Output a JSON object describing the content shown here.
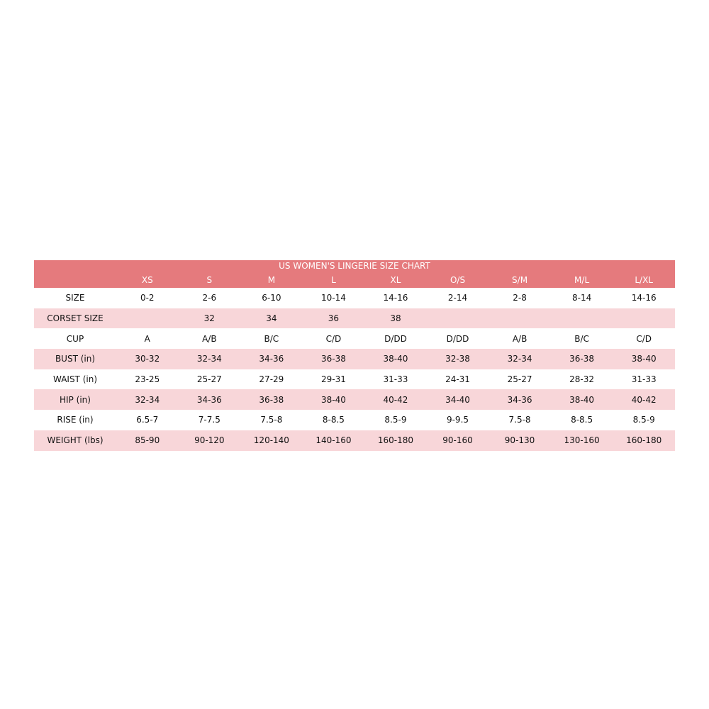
{
  "chart_data": {
    "type": "table",
    "title": "US WOMEN'S LINGERIE SIZE CHART",
    "columns": [
      "XS",
      "S",
      "M",
      "L",
      "XL",
      "O/S",
      "S/M",
      "M/L",
      "L/XL"
    ],
    "rows": [
      {
        "label": "SIZE",
        "values": [
          "0-2",
          "2-6",
          "6-10",
          "10-14",
          "14-16",
          "2-14",
          "2-8",
          "8-14",
          "14-16"
        ]
      },
      {
        "label": "CORSET SIZE",
        "values": [
          "",
          "32",
          "34",
          "36",
          "38",
          "",
          "",
          "",
          ""
        ]
      },
      {
        "label": "CUP",
        "values": [
          "A",
          "A/B",
          "B/C",
          "C/D",
          "D/DD",
          "D/DD",
          "A/B",
          "B/C",
          "C/D"
        ]
      },
      {
        "label": "BUST (in)",
        "values": [
          "30-32",
          "32-34",
          "34-36",
          "36-38",
          "38-40",
          "32-38",
          "32-34",
          "36-38",
          "38-40"
        ]
      },
      {
        "label": "WAIST (in)",
        "values": [
          "23-25",
          "25-27",
          "27-29",
          "29-31",
          "31-33",
          "24-31",
          "25-27",
          "28-32",
          "31-33"
        ]
      },
      {
        "label": "HIP (in)",
        "values": [
          "32-34",
          "34-36",
          "36-38",
          "38-40",
          "40-42",
          "34-40",
          "34-36",
          "38-40",
          "40-42"
        ]
      },
      {
        "label": "RISE (in)",
        "values": [
          "6.5-7",
          "7-7.5",
          "7.5-8",
          "8-8.5",
          "8.5-9",
          "9-9.5",
          "7.5-8",
          "8-8.5",
          "8.5-9"
        ]
      },
      {
        "label": "WEIGHT (lbs)",
        "values": [
          "85-90",
          "90-120",
          "120-140",
          "140-160",
          "160-180",
          "90-160",
          "90-130",
          "130-160",
          "160-180"
        ]
      }
    ],
    "colors": {
      "header": "#e57a7d",
      "alt_row": "#f8d6d9",
      "row": "#ffffff"
    }
  }
}
